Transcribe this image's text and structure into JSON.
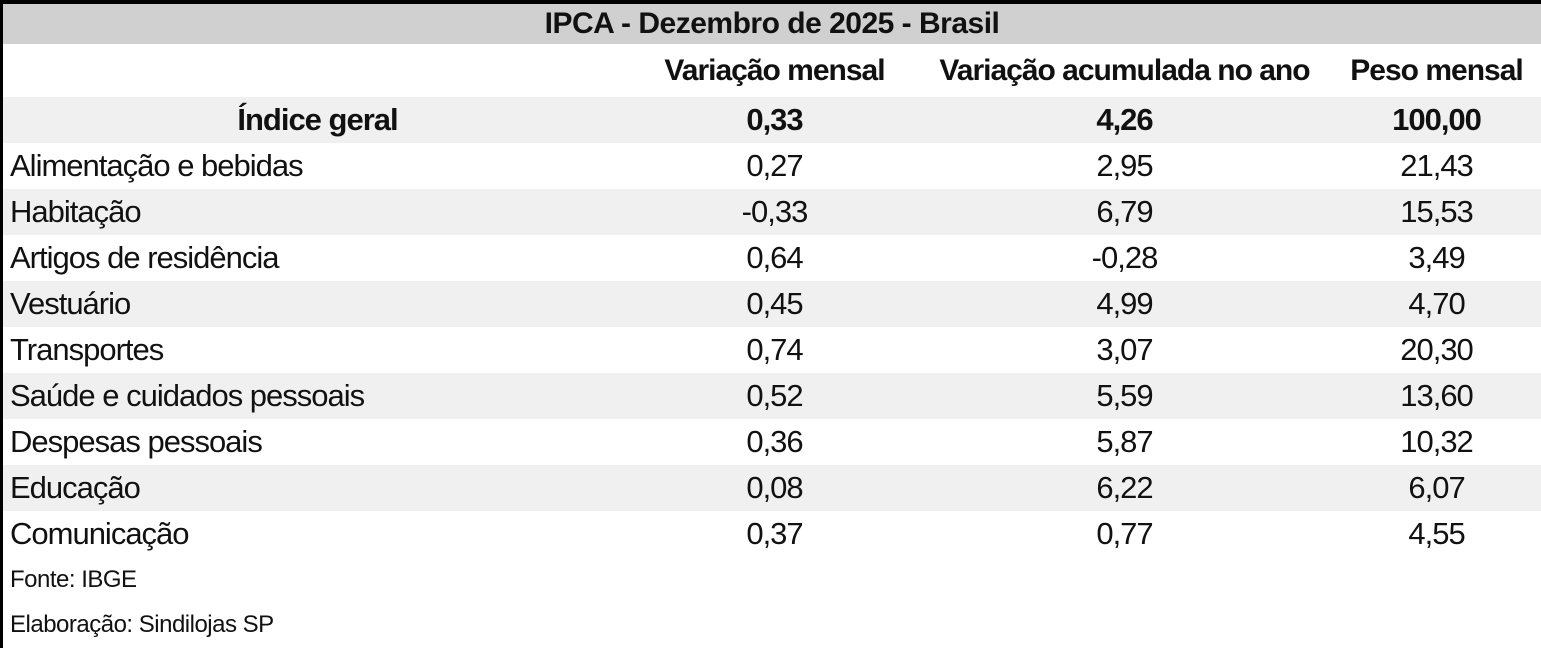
{
  "chart_data": {
    "type": "table",
    "title": "IPCA - Dezembro de 2025 - Brasil",
    "columns": [
      "Variação mensal",
      "Variação acumulada no ano",
      "Peso mensal"
    ],
    "rows": [
      {
        "label": "Índice geral",
        "variacao_mensal": "0,33",
        "variacao_acumulada_ano": "4,26",
        "peso_mensal": "100,00"
      },
      {
        "label": "Alimentação e bebidas",
        "variacao_mensal": "0,27",
        "variacao_acumulada_ano": "2,95",
        "peso_mensal": "21,43"
      },
      {
        "label": "Habitação",
        "variacao_mensal": "-0,33",
        "variacao_acumulada_ano": "6,79",
        "peso_mensal": "15,53"
      },
      {
        "label": "Artigos de residência",
        "variacao_mensal": "0,64",
        "variacao_acumulada_ano": "-0,28",
        "peso_mensal": "3,49"
      },
      {
        "label": "Vestuário",
        "variacao_mensal": "0,45",
        "variacao_acumulada_ano": "4,99",
        "peso_mensal": "4,70"
      },
      {
        "label": "Transportes",
        "variacao_mensal": "0,74",
        "variacao_acumulada_ano": "3,07",
        "peso_mensal": "20,30"
      },
      {
        "label": "Saúde e cuidados pessoais",
        "variacao_mensal": "0,52",
        "variacao_acumulada_ano": "5,59",
        "peso_mensal": "13,60"
      },
      {
        "label": "Despesas pessoais",
        "variacao_mensal": "0,36",
        "variacao_acumulada_ano": "5,87",
        "peso_mensal": "10,32"
      },
      {
        "label": "Educação",
        "variacao_mensal": "0,08",
        "variacao_acumulada_ano": "6,22",
        "peso_mensal": "6,07"
      },
      {
        "label": "Comunicação",
        "variacao_mensal": "0,37",
        "variacao_acumulada_ano": "0,77",
        "peso_mensal": "4,55"
      }
    ],
    "source": "Fonte: IBGE",
    "elaboration": "Elaboração: Sindilojas SP",
    "layout": {
      "title_background": "#d0d0d0",
      "stripe_background": "#f0f0f0",
      "border_color": "#000000",
      "stripes_start_on_first_row": true,
      "first_row_bold": true
    }
  }
}
